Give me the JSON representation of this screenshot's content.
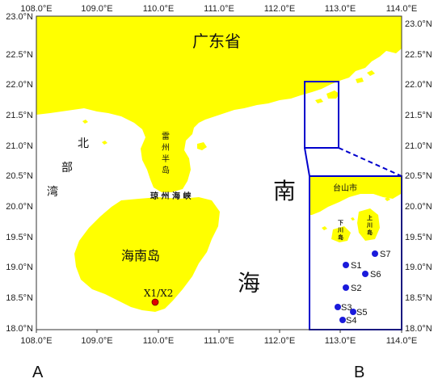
{
  "colors": {
    "land": "#ffff00",
    "water": "#ffffff",
    "inset_frame": "#0000cc",
    "site_main": "#e00000",
    "site_inset": "#1a1adb"
  },
  "axes": {
    "lon_ticks": [
      "108.0°E",
      "109.0°E",
      "110.0°E",
      "111.0°E",
      "112.0°E",
      "113.0°E",
      "114.0°E"
    ],
    "lat_ticks": [
      "23.0°N",
      "22.5°N",
      "22.0°N",
      "21.5°N",
      "21.0°N",
      "20.5°N",
      "20.0°N",
      "19.5°N",
      "19.0°N",
      "18.5°N",
      "18.0°N"
    ]
  },
  "map_labels": {
    "guangdong": "广东省",
    "beibuwan_1": "北",
    "beibuwan_2": "部",
    "beibuwan_3": "湾",
    "leizhou_1": "雷",
    "leizhou_2": "州",
    "leizhou_3": "半",
    "leizhou_4": "岛",
    "qiongzhou": "琼 州 海 峡",
    "hainan": "海南岛",
    "nan": "南",
    "hai": "海",
    "main_site": "X1/X2"
  },
  "inset_labels": {
    "taishan": "台山市",
    "xiachuan_1": "下",
    "xiachuan_2": "川",
    "xiachuan_3": "岛",
    "shangchuan_1": "上",
    "shangchuan_2": "川",
    "shangchuan_3": "岛"
  },
  "stations": [
    "S1",
    "S2",
    "S3",
    "S4",
    "S5",
    "S6",
    "S7"
  ],
  "panels": {
    "left": "A",
    "right": "B"
  }
}
